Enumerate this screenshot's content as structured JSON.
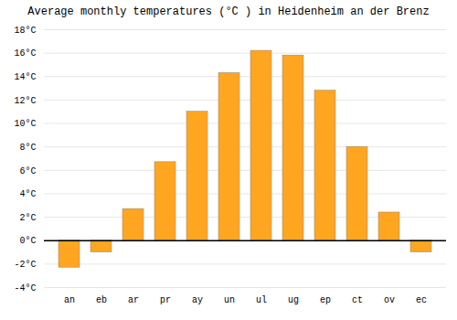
{
  "chart_data": {
    "type": "bar",
    "title": "Average monthly temperatures (°C ) in Heidenheim an der Brenz",
    "categories": [
      "an",
      "eb",
      "ar",
      "pr",
      "ay",
      "un",
      "ul",
      "ug",
      "ep",
      "ct",
      "ov",
      "ec"
    ],
    "values": [
      -2.3,
      -1.0,
      2.7,
      6.7,
      11.0,
      14.3,
      16.2,
      15.8,
      12.8,
      8.0,
      2.4,
      -1.0
    ],
    "color": "#FFA520",
    "ylim": [
      -4,
      18
    ],
    "yticks": [
      {
        "value": -4,
        "label": "-4°C"
      },
      {
        "value": -2,
        "label": "-2°C"
      },
      {
        "value": 0,
        "label": "0°C"
      },
      {
        "value": 2,
        "label": "2°C"
      },
      {
        "value": 4,
        "label": "4°C"
      },
      {
        "value": 6,
        "label": "6°C"
      },
      {
        "value": 8,
        "label": "8°C"
      },
      {
        "value": 10,
        "label": "10°C"
      },
      {
        "value": 12,
        "label": "12°C"
      },
      {
        "value": 14,
        "label": "14°C"
      },
      {
        "value": 16,
        "label": "16°C"
      },
      {
        "value": 18,
        "label": "18°C"
      }
    ],
    "grid": true
  }
}
